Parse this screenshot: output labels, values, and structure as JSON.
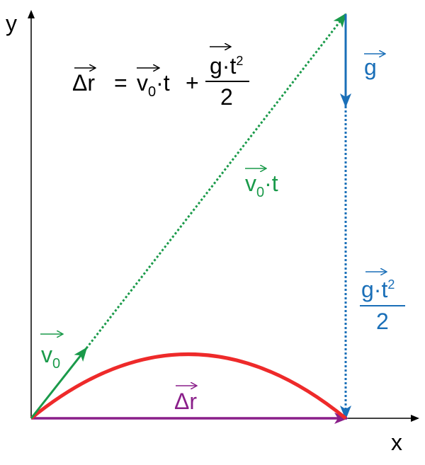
{
  "axes": {
    "x_label": "x",
    "y_label": "y"
  },
  "formula": {
    "lhs": "Δr",
    "equals": "=",
    "term1_base": "v",
    "term1_sub": "0",
    "term1_rest": "·t",
    "plus": "+",
    "num_base": "g·t",
    "num_sup": "2",
    "den": "2"
  },
  "labels": {
    "v0t_base": "v",
    "v0t_sub": "0",
    "v0t_rest": "·t",
    "g": "g",
    "gt2_base": "g·t",
    "gt2_sup": "2",
    "gt2_den": "2",
    "v0_base": "v",
    "v0_sub": "0",
    "dr": "Δr"
  },
  "colors": {
    "axis": "#000000",
    "velocity": "#1a9a4a",
    "gravity": "#1a6fb8",
    "trajectory": "#ee2a2a",
    "displacement": "#8a1f8a"
  }
}
